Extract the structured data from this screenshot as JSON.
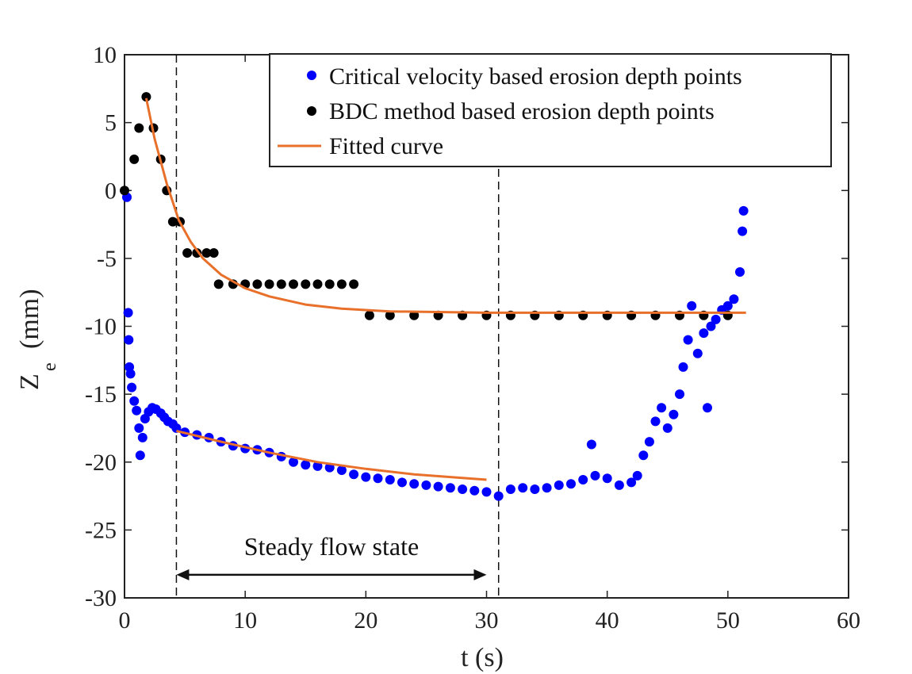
{
  "chart_data": {
    "type": "scatter",
    "xlabel": "t (s)",
    "ylabel": "Z",
    "ylabel_sub": "e",
    "ylabel_unit": "(mm)",
    "xlim": [
      0,
      60
    ],
    "ylim": [
      -30,
      10
    ],
    "xticks": [
      0,
      10,
      20,
      30,
      40,
      50,
      60
    ],
    "yticks": [
      10,
      5,
      0,
      -5,
      -10,
      -15,
      -20,
      -25,
      -30
    ],
    "grid": false,
    "legend_position": "top-right",
    "legend": [
      {
        "label": "Critical velocity based erosion depth points",
        "marker": "dot",
        "color": "#0000ff"
      },
      {
        "label": "BDC method based erosion depth points",
        "marker": "dot",
        "color": "#000000"
      },
      {
        "label": "Fitted curve",
        "marker": "line",
        "color": "#e8702a"
      }
    ],
    "series": [
      {
        "name": "Critical velocity based erosion depth points",
        "color": "#0000ff",
        "points": [
          [
            0.2,
            -0.5
          ],
          [
            0.3,
            -9
          ],
          [
            0.35,
            -11
          ],
          [
            0.4,
            -13
          ],
          [
            0.5,
            -13.5
          ],
          [
            0.6,
            -14.5
          ],
          [
            0.8,
            -15.5
          ],
          [
            1,
            -16.2
          ],
          [
            1.2,
            -17.5
          ],
          [
            1.3,
            -19.5
          ],
          [
            1.5,
            -18.2
          ],
          [
            1.7,
            -16.8
          ],
          [
            2,
            -16.3
          ],
          [
            2.3,
            -16
          ],
          [
            2.6,
            -16.1
          ],
          [
            3,
            -16.4
          ],
          [
            3.3,
            -16.7
          ],
          [
            3.6,
            -17
          ],
          [
            4,
            -17.2
          ],
          [
            4.3,
            -17.5
          ],
          [
            5,
            -17.8
          ],
          [
            6,
            -18
          ],
          [
            7,
            -18.2
          ],
          [
            8,
            -18.5
          ],
          [
            9,
            -18.8
          ],
          [
            10,
            -19
          ],
          [
            11,
            -19.1
          ],
          [
            12,
            -19.3
          ],
          [
            13,
            -19.6
          ],
          [
            14,
            -20
          ],
          [
            15,
            -20.2
          ],
          [
            16,
            -20.3
          ],
          [
            17,
            -20.4
          ],
          [
            18,
            -20.6
          ],
          [
            19,
            -20.9
          ],
          [
            20,
            -21.1
          ],
          [
            21,
            -21.2
          ],
          [
            22,
            -21.3
          ],
          [
            23,
            -21.5
          ],
          [
            24,
            -21.6
          ],
          [
            25,
            -21.7
          ],
          [
            26,
            -21.8
          ],
          [
            27,
            -21.9
          ],
          [
            28,
            -22
          ],
          [
            29,
            -22.1
          ],
          [
            30,
            -22.2
          ],
          [
            31,
            -22.5
          ],
          [
            32,
            -22
          ],
          [
            33,
            -21.9
          ],
          [
            34,
            -22
          ],
          [
            35,
            -21.9
          ],
          [
            36,
            -21.7
          ],
          [
            37,
            -21.6
          ],
          [
            38,
            -21.3
          ],
          [
            38.7,
            -18.7
          ],
          [
            39,
            -21
          ],
          [
            40,
            -21.2
          ],
          [
            41,
            -21.7
          ],
          [
            42,
            -21.5
          ],
          [
            42.5,
            -21
          ],
          [
            43,
            -19.5
          ],
          [
            43.5,
            -18.5
          ],
          [
            44,
            -17
          ],
          [
            44.5,
            -16
          ],
          [
            45,
            -17.5
          ],
          [
            45.5,
            -16.5
          ],
          [
            46,
            -15
          ],
          [
            46.3,
            -13
          ],
          [
            46.7,
            -11
          ],
          [
            47,
            -8.5
          ],
          [
            47.5,
            -12
          ],
          [
            48,
            -10.5
          ],
          [
            48.3,
            -16
          ],
          [
            48.6,
            -10
          ],
          [
            49,
            -9.5
          ],
          [
            49.5,
            -8.8
          ],
          [
            50,
            -8.5
          ],
          [
            50.5,
            -8
          ],
          [
            51,
            -6
          ],
          [
            51.2,
            -3
          ],
          [
            51.3,
            -1.5
          ]
        ]
      },
      {
        "name": "BDC method based erosion depth points",
        "color": "#000000",
        "points": [
          [
            0,
            0
          ],
          [
            0.8,
            2.3
          ],
          [
            1.2,
            4.6
          ],
          [
            1.8,
            6.9
          ],
          [
            2.4,
            4.6
          ],
          [
            3,
            2.3
          ],
          [
            3.5,
            0
          ],
          [
            4,
            -2.3
          ],
          [
            4.6,
            -2.3
          ],
          [
            5.2,
            -4.6
          ],
          [
            6,
            -4.6
          ],
          [
            6.8,
            -4.6
          ],
          [
            7.4,
            -4.6
          ],
          [
            7.8,
            -6.9
          ],
          [
            9,
            -6.9
          ],
          [
            10,
            -6.9
          ],
          [
            11,
            -6.9
          ],
          [
            12,
            -6.9
          ],
          [
            13,
            -6.9
          ],
          [
            14,
            -6.9
          ],
          [
            15,
            -6.9
          ],
          [
            16,
            -6.9
          ],
          [
            17,
            -6.9
          ],
          [
            18,
            -6.9
          ],
          [
            19,
            -6.9
          ],
          [
            20.3,
            -9.2
          ],
          [
            22,
            -9.2
          ],
          [
            24,
            -9.2
          ],
          [
            26,
            -9.2
          ],
          [
            28,
            -9.2
          ],
          [
            30,
            -9.2
          ],
          [
            32,
            -9.2
          ],
          [
            34,
            -9.2
          ],
          [
            36,
            -9.2
          ],
          [
            38,
            -9.2
          ],
          [
            40,
            -9.2
          ],
          [
            42,
            -9.2
          ],
          [
            44,
            -9.2
          ],
          [
            46,
            -9.2
          ],
          [
            48,
            -9.2
          ],
          [
            50,
            -9.2
          ]
        ]
      },
      {
        "name": "Fitted curve",
        "color": "#e8702a",
        "type": "line",
        "points": [
          [
            1.8,
            6.8
          ],
          [
            2.5,
            3.8
          ],
          [
            3.5,
            0.5
          ],
          [
            4.5,
            -2.2
          ],
          [
            5.5,
            -3.8
          ],
          [
            6.5,
            -5
          ],
          [
            8,
            -6.2
          ],
          [
            10,
            -7.2
          ],
          [
            12,
            -7.8
          ],
          [
            15,
            -8.4
          ],
          [
            18,
            -8.7
          ],
          [
            22,
            -8.9
          ],
          [
            30,
            -9
          ],
          [
            40,
            -9
          ],
          [
            51.5,
            -9
          ]
        ]
      },
      {
        "name": "Fitted curve",
        "color": "#e8702a",
        "type": "line",
        "points": [
          [
            4.3,
            -17.7
          ],
          [
            8,
            -18.5
          ],
          [
            12,
            -19.3
          ],
          [
            16,
            -20
          ],
          [
            20,
            -20.5
          ],
          [
            24,
            -20.9
          ],
          [
            27,
            -21.1
          ],
          [
            30,
            -21.3
          ]
        ]
      }
    ],
    "annotations": {
      "steady_label": "Steady flow state",
      "vline1_x": 4.3,
      "vline2_x": 31,
      "arrow_from": 4.3,
      "arrow_to": 30,
      "arrow_y": -28.3
    }
  }
}
